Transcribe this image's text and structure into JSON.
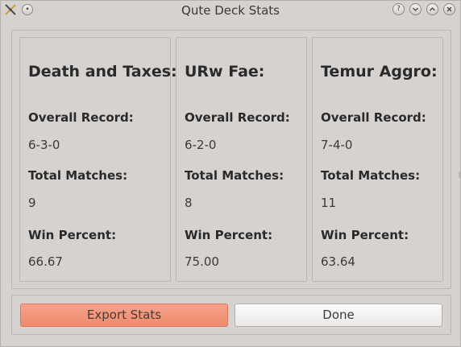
{
  "window": {
    "title": "Qute Deck Stats",
    "buttons": [
      "help",
      "minimize",
      "maximize",
      "close"
    ]
  },
  "labels": {
    "overall_record": "Overall Record:",
    "total_matches": "Total Matches:",
    "win_percent": "Win Percent:"
  },
  "decks": [
    {
      "name": "Death and Taxes:",
      "record": "6-3-0",
      "matches": "9",
      "win_percent": "66.67"
    },
    {
      "name": "URw Fae:",
      "record": "6-2-0",
      "matches": "8",
      "win_percent": "75.00"
    },
    {
      "name": "Temur Aggro:",
      "record": "7-4-0",
      "matches": "11",
      "win_percent": "63.64"
    }
  ],
  "actions": {
    "export_label": "Export Stats",
    "done_label": "Done"
  },
  "colors": {
    "window_bg": "#d6d2d0",
    "accent_button": "#ee8a6c"
  }
}
